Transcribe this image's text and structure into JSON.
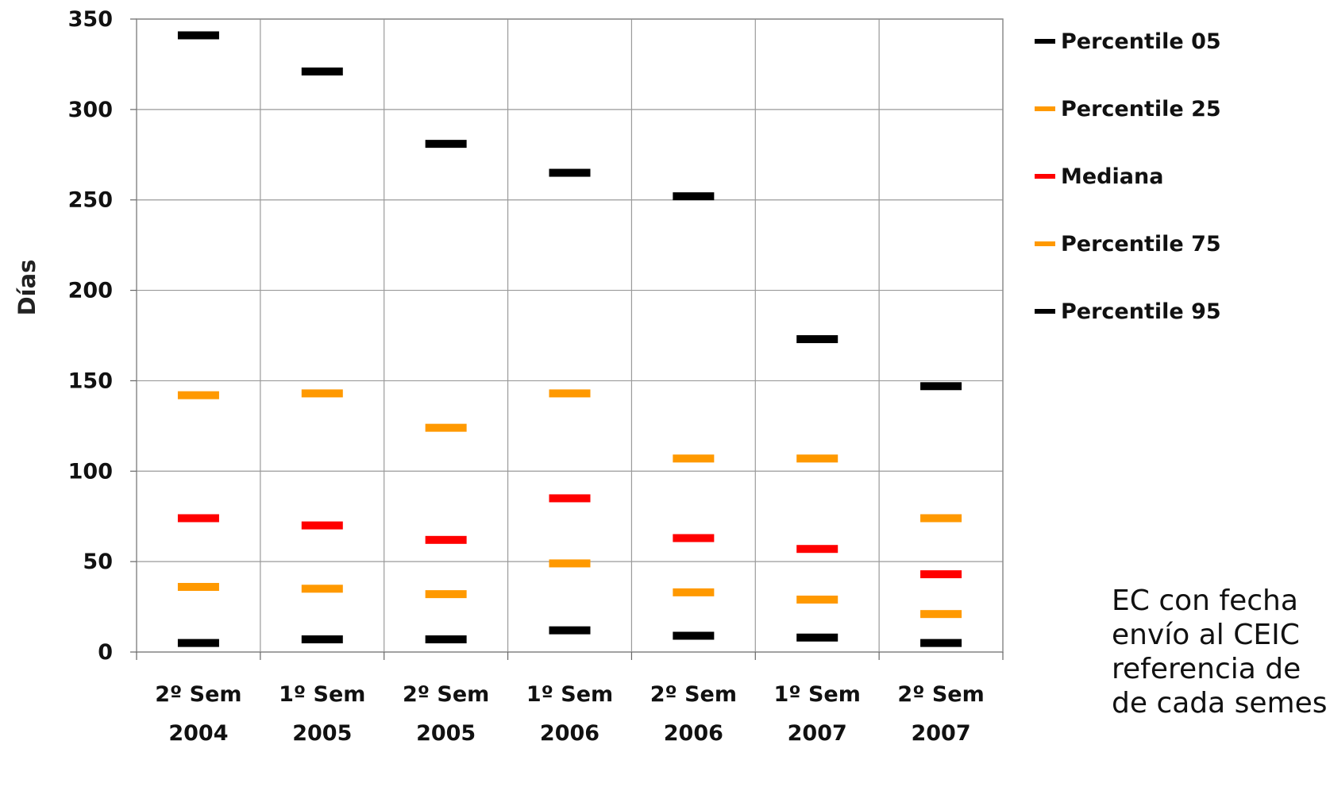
{
  "chart_data": {
    "type": "scatter",
    "ylabel": "Días",
    "xlabel": "",
    "ylim": [
      0,
      350
    ],
    "yticks": [
      0,
      50,
      100,
      150,
      200,
      250,
      300,
      350
    ],
    "grid": true,
    "legend_position": "right",
    "categories": [
      [
        "2º Sem",
        "2004"
      ],
      [
        "1º Sem",
        "2005"
      ],
      [
        "2º Sem",
        "2005"
      ],
      [
        "1º Sem",
        "2006"
      ],
      [
        "2º Sem",
        "2006"
      ],
      [
        "1º Sem",
        "2007"
      ],
      [
        "2º Sem",
        "2007"
      ]
    ],
    "series": [
      {
        "name": "Percentile 05",
        "color": "#000000",
        "values": [
          5,
          7,
          7,
          12,
          9,
          8,
          5
        ]
      },
      {
        "name": "Percentile 25",
        "color": "#FF9900",
        "values": [
          36,
          35,
          32,
          49,
          33,
          29,
          21
        ]
      },
      {
        "name": "Mediana",
        "color": "#FF0000",
        "values": [
          74,
          70,
          62,
          85,
          63,
          57,
          43
        ]
      },
      {
        "name": "Percentile 75",
        "color": "#FF9900",
        "values": [
          142,
          143,
          124,
          143,
          107,
          107,
          74
        ]
      },
      {
        "name": "Percentile 95",
        "color": "#000000",
        "values": [
          341,
          321,
          281,
          265,
          252,
          173,
          147
        ]
      }
    ]
  },
  "note": {
    "lines": [
      "EC con fecha",
      "envío al CEIC",
      "referencia de",
      "de cada semes"
    ]
  }
}
